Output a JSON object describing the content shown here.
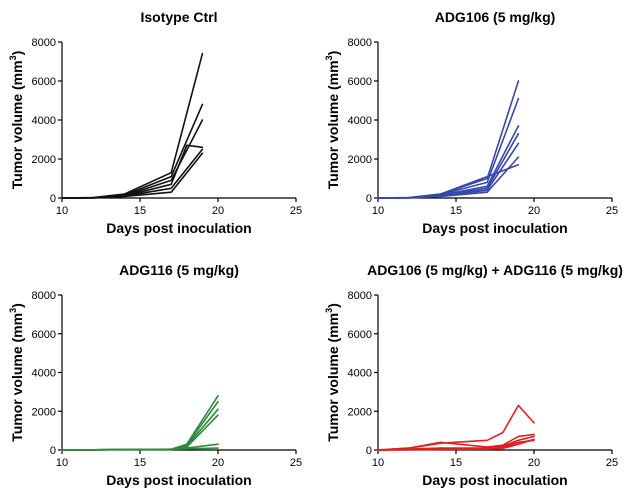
{
  "chart_data": [
    {
      "type": "line",
      "title": "Isotype Ctrl",
      "xlabel": "Days post inoculation",
      "ylabel_main": "Tumor volume (mm",
      "ylabel_sup": "3",
      "ylabel_close": ")",
      "xlim": [
        10,
        25
      ],
      "ylim": [
        0,
        8000
      ],
      "xticks": [
        "10",
        "15",
        "20",
        "25"
      ],
      "yticks": [
        "0",
        "2000",
        "4000",
        "6000",
        "8000"
      ],
      "color": "#111111",
      "series": [
        {
          "x": [
            10,
            12,
            14,
            17,
            19
          ],
          "y": [
            0,
            20,
            200,
            1300,
            7400
          ]
        },
        {
          "x": [
            10,
            12,
            14,
            17,
            19
          ],
          "y": [
            0,
            15,
            150,
            1100,
            4800
          ]
        },
        {
          "x": [
            10,
            12,
            14,
            17,
            19
          ],
          "y": [
            0,
            10,
            120,
            900,
            4000
          ]
        },
        {
          "x": [
            10,
            12,
            14,
            17,
            18,
            19
          ],
          "y": [
            0,
            10,
            100,
            700,
            2700,
            2600
          ]
        },
        {
          "x": [
            10,
            12,
            14,
            17,
            19
          ],
          "y": [
            0,
            10,
            100,
            500,
            2500
          ]
        },
        {
          "x": [
            10,
            12,
            14,
            17,
            19
          ],
          "y": [
            0,
            5,
            80,
            300,
            2300
          ]
        }
      ]
    },
    {
      "type": "line",
      "title": "ADG106 (5 mg/kg)",
      "xlabel": "Days post inoculation",
      "ylabel_main": "Tumor volume (mm",
      "ylabel_sup": "3",
      "ylabel_close": ")",
      "xlim": [
        10,
        25
      ],
      "ylim": [
        0,
        8000
      ],
      "xticks": [
        "10",
        "15",
        "20",
        "25"
      ],
      "yticks": [
        "0",
        "2000",
        "4000",
        "6000",
        "8000"
      ],
      "color": "#3848a8",
      "series": [
        {
          "x": [
            10,
            12,
            14,
            17,
            19
          ],
          "y": [
            0,
            20,
            200,
            1000,
            6000
          ]
        },
        {
          "x": [
            10,
            12,
            14,
            17,
            19
          ],
          "y": [
            0,
            15,
            180,
            800,
            5100
          ]
        },
        {
          "x": [
            10,
            12,
            14,
            17,
            19
          ],
          "y": [
            0,
            10,
            150,
            600,
            3700
          ]
        },
        {
          "x": [
            10,
            12,
            14,
            17,
            19
          ],
          "y": [
            0,
            10,
            120,
            500,
            3300
          ]
        },
        {
          "x": [
            10,
            12,
            14,
            17,
            19
          ],
          "y": [
            0,
            10,
            100,
            400,
            2800
          ]
        },
        {
          "x": [
            10,
            12,
            14,
            17,
            19
          ],
          "y": [
            0,
            10,
            200,
            1100,
            1700
          ]
        },
        {
          "x": [
            10,
            12,
            14,
            17,
            19
          ],
          "y": [
            0,
            5,
            80,
            300,
            2100
          ]
        }
      ]
    },
    {
      "type": "line",
      "title": "ADG116 (5 mg/kg)",
      "xlabel": "Days post inoculation",
      "ylabel_main": "Tumor volume (mm",
      "ylabel_sup": "3",
      "ylabel_close": ")",
      "xlim": [
        10,
        25
      ],
      "ylim": [
        0,
        8000
      ],
      "xticks": [
        "10",
        "15",
        "20",
        "25"
      ],
      "yticks": [
        "0",
        "2000",
        "4000",
        "6000",
        "8000"
      ],
      "color": "#2e8b3a",
      "series": [
        {
          "x": [
            10,
            12,
            14,
            17,
            18,
            20
          ],
          "y": [
            0,
            10,
            20,
            40,
            300,
            2800
          ]
        },
        {
          "x": [
            10,
            12,
            14,
            17,
            18,
            20
          ],
          "y": [
            0,
            10,
            20,
            40,
            250,
            2500
          ]
        },
        {
          "x": [
            10,
            12,
            14,
            17,
            18,
            20
          ],
          "y": [
            0,
            10,
            20,
            30,
            200,
            2100
          ]
        },
        {
          "x": [
            10,
            12,
            14,
            17,
            18,
            20
          ],
          "y": [
            0,
            10,
            20,
            30,
            150,
            1800
          ]
        },
        {
          "x": [
            10,
            12,
            14,
            17,
            18,
            20
          ],
          "y": [
            0,
            10,
            20,
            30,
            100,
            300
          ]
        },
        {
          "x": [
            10,
            12,
            14,
            17,
            18,
            20
          ],
          "y": [
            0,
            10,
            20,
            30,
            60,
            100
          ]
        }
      ]
    },
    {
      "type": "line",
      "title": "ADG106 (5 mg/kg) + ADG116 (5 mg/kg)",
      "xlabel": "Days post inoculation",
      "ylabel_main": "Tumor volume (mm",
      "ylabel_sup": "3",
      "ylabel_close": ")",
      "xlim": [
        10,
        25
      ],
      "ylim": [
        0,
        8000
      ],
      "xticks": [
        "10",
        "15",
        "20",
        "25"
      ],
      "yticks": [
        "0",
        "2000",
        "4000",
        "6000",
        "8000"
      ],
      "color": "#e02020",
      "series": [
        {
          "x": [
            10,
            12,
            14,
            17,
            18,
            19,
            20
          ],
          "y": [
            0,
            100,
            350,
            500,
            900,
            2300,
            1400
          ]
        },
        {
          "x": [
            10,
            12,
            14,
            17,
            18,
            19,
            20
          ],
          "y": [
            0,
            100,
            400,
            150,
            250,
            700,
            800
          ]
        },
        {
          "x": [
            10,
            12,
            14,
            17,
            18,
            19,
            20
          ],
          "y": [
            0,
            50,
            100,
            100,
            200,
            500,
            700
          ]
        },
        {
          "x": [
            10,
            12,
            14,
            17,
            18,
            19,
            20
          ],
          "y": [
            0,
            20,
            40,
            60,
            150,
            400,
            500
          ]
        },
        {
          "x": [
            10,
            12,
            14,
            17,
            18,
            19,
            20
          ],
          "y": [
            0,
            10,
            20,
            40,
            80,
            300,
            550
          ]
        }
      ]
    }
  ]
}
